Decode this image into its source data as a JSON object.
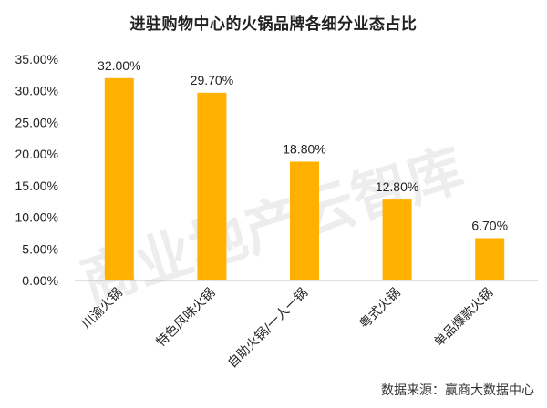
{
  "chart_data": {
    "type": "bar",
    "title": "进驻购物中心的火锅品牌各细分业态占比",
    "categories": [
      "川渝火锅",
      "特色风味火锅",
      "自助火锅/一人一锅",
      "粤式火锅",
      "单品爆款火锅"
    ],
    "values": [
      32.0,
      29.7,
      18.8,
      12.8,
      6.7
    ],
    "value_labels": [
      "32.00%",
      "29.70%",
      "18.80%",
      "12.80%",
      "6.70%"
    ],
    "ytick_labels": [
      "0.00%",
      "5.00%",
      "10.00%",
      "15.00%",
      "20.00%",
      "25.00%",
      "30.00%",
      "35.00%"
    ],
    "ylim": [
      0,
      35
    ],
    "xlabel": "",
    "ylabel": "",
    "grid": false,
    "bar_color": "#FFB000"
  },
  "watermark": "商业地产云智库",
  "source": "数据来源：赢商大数据中心"
}
